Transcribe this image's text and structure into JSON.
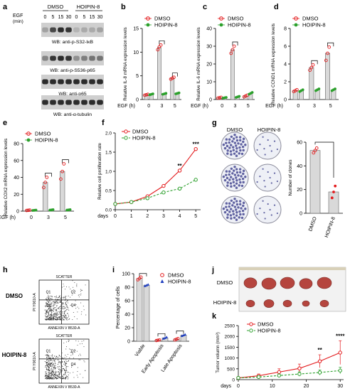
{
  "colors": {
    "dmso": "#e31a1c",
    "hoipin": "#2ca02c",
    "hoipin_blue": "#1f3fbf",
    "bar": "#d9d9d9",
    "bar_edge": "#666666",
    "blot_band": "#1a1a1a",
    "blot_bg": "#cfcfcf",
    "flow_dot": "#333333",
    "tumor": "#b5453e"
  },
  "panels": {
    "a": {
      "letter": "a",
      "groups": [
        "DMSO",
        "HOIPIN-8"
      ],
      "egf_label": "EGF",
      "egf_unit": "(min)",
      "times": [
        "0",
        "5",
        "15",
        "30",
        "0",
        "5",
        "15",
        "30"
      ],
      "blots": [
        {
          "label": "WB: anti-p-S32-IκB",
          "intensity": [
            0.25,
            0.75,
            0.9,
            0.85,
            0.15,
            0.2,
            0.2,
            0.25
          ]
        },
        {
          "label": "WB: anti-p-S536-p65",
          "intensity": [
            0.4,
            0.85,
            0.9,
            0.85,
            0.35,
            0.45,
            0.5,
            0.5
          ]
        },
        {
          "label": "WB: anti-p65",
          "intensity": [
            0.9,
            0.9,
            0.9,
            0.9,
            0.9,
            0.9,
            0.9,
            0.9
          ]
        },
        {
          "label": "WB: anti-α-tubulin",
          "intensity": [
            0.9,
            0.9,
            0.9,
            0.9,
            0.9,
            0.9,
            0.9,
            0.9
          ]
        }
      ]
    },
    "g": {
      "letter": "g",
      "groups": [
        "DMSO",
        "HOIPIN-8"
      ]
    },
    "h": {
      "letter": "h",
      "rows": [
        "DMSO",
        "HOIPIN-8"
      ],
      "plot_title": "SCATTER",
      "xlabel": "ANNEXIN V B530-A",
      "ylabel": "PI Y0610-A",
      "quadrants": [
        "Q1",
        "Q2",
        "Q3",
        "Q4"
      ]
    },
    "j": {
      "letter": "j",
      "rows": [
        "DMSO",
        "HOIPIN-8"
      ]
    }
  },
  "chart_data": [
    {
      "panel": "b",
      "type": "bar",
      "letter": "b",
      "ylabel": "Relative IL-8 mRNA expression levels",
      "xlabel": "EGF (h)",
      "categories": [
        "0",
        "3",
        "5"
      ],
      "ylim": [
        0,
        15
      ],
      "yticks": [
        0,
        5,
        10,
        15
      ],
      "series": [
        {
          "name": "DMSO",
          "values": [
            1.0,
            11.0,
            4.5
          ],
          "points": [
            [
              0.9,
              1.0,
              1.1
            ],
            [
              10.5,
              11.1,
              11.5
            ],
            [
              4.3,
              4.5,
              4.7
            ]
          ]
        },
        {
          "name": "HOIPIN-8",
          "values": [
            1.1,
            1.2,
            1.3
          ],
          "points": [
            [
              1.0,
              1.1,
              1.2
            ],
            [
              1.1,
              1.2,
              1.3
            ],
            [
              1.2,
              1.3,
              1.4
            ]
          ]
        }
      ],
      "sig": [
        1,
        2
      ]
    },
    {
      "panel": "c",
      "type": "bar",
      "letter": "c",
      "ylabel": "Relative IL-6 mRNA expression levels",
      "xlabel": "EGF (h)",
      "categories": [
        "0",
        "3",
        "5"
      ],
      "ylim": [
        0,
        40
      ],
      "yticks": [
        0,
        10,
        20,
        30,
        40
      ],
      "series": [
        {
          "name": "DMSO",
          "values": [
            1.0,
            28.0,
            2.0
          ],
          "points": [
            [
              0.8,
              1.0,
              1.2
            ],
            [
              26,
              28,
              30
            ],
            [
              1.5,
              2.0,
              2.4
            ]
          ]
        },
        {
          "name": "HOIPIN-8",
          "values": [
            1.0,
            1.5,
            3.5
          ],
          "points": [
            [
              0.8,
              1.0,
              1.2
            ],
            [
              1.2,
              1.5,
              1.8
            ],
            [
              3.0,
              3.5,
              4.0
            ]
          ]
        }
      ],
      "sig": [
        1
      ]
    },
    {
      "panel": "d",
      "type": "bar",
      "letter": "d",
      "ylabel": "Relative CCND1 mRNA expression levels",
      "xlabel": "EGF (h)",
      "categories": [
        "0",
        "3",
        "5"
      ],
      "ylim": [
        0,
        8
      ],
      "yticks": [
        0,
        2,
        4,
        6,
        8
      ],
      "series": [
        {
          "name": "DMSO",
          "values": [
            1.0,
            3.6,
            5.2
          ],
          "points": [
            [
              0.9,
              1.0,
              1.1
            ],
            [
              3.3,
              3.6,
              3.9
            ],
            [
              4.4,
              5.2,
              5.9
            ]
          ]
        },
        {
          "name": "HOIPIN-8",
          "values": [
            1.0,
            1.1,
            1.1
          ],
          "points": [
            [
              0.9,
              1.0,
              1.1
            ],
            [
              1.0,
              1.1,
              1.2
            ],
            [
              1.0,
              1.1,
              1.2
            ]
          ]
        }
      ],
      "sig": [
        1,
        2
      ]
    },
    {
      "panel": "e",
      "type": "bar",
      "letter": "e",
      "ylabel": "Relative COX2 mRNA expression levels",
      "xlabel": "EGF (h)",
      "categories": [
        "0",
        "3",
        "5"
      ],
      "ylim": [
        0,
        80
      ],
      "yticks": [
        0,
        20,
        40,
        60,
        80
      ],
      "series": [
        {
          "name": "DMSO",
          "values": [
            1.0,
            34.0,
            47.0
          ],
          "points": [
            [
              0.8,
              1.0,
              1.2
            ],
            [
              28,
              34,
              40
            ],
            [
              38,
              47,
              56
            ]
          ]
        },
        {
          "name": "HOIPIN-8",
          "values": [
            1.0,
            1.5,
            1.5
          ],
          "points": [
            [
              0.8,
              1.0,
              1.2
            ],
            [
              1.2,
              1.5,
              1.8
            ],
            [
              1.2,
              1.5,
              1.8
            ]
          ]
        }
      ],
      "sig": [
        1,
        2
      ]
    },
    {
      "panel": "f",
      "type": "line",
      "letter": "f",
      "ylabel": "Relative cell proliferation rate",
      "xlabel": "days",
      "x": [
        0,
        1,
        2,
        3,
        4,
        5
      ],
      "ylim": [
        0,
        2.0
      ],
      "yticks": [
        0.0,
        0.5,
        1.0,
        1.5,
        2.0
      ],
      "series": [
        {
          "name": "DMSO",
          "values": [
            0.15,
            0.2,
            0.35,
            0.62,
            1.02,
            1.58
          ]
        },
        {
          "name": "HOIPIN-8",
          "values": [
            0.15,
            0.2,
            0.3,
            0.45,
            0.55,
            0.78
          ]
        }
      ],
      "annotations": [
        {
          "x": 4,
          "text": "**"
        },
        {
          "x": 5,
          "text": "***"
        }
      ]
    },
    {
      "panel": "g",
      "type": "bar",
      "letter": "",
      "ylabel": "Number of clones",
      "categories": [
        "DMSO",
        "HOIPIN-8"
      ],
      "ylim": [
        0,
        60
      ],
      "yticks": [
        0,
        20,
        40,
        60
      ],
      "values": [
        53,
        18
      ],
      "points": [
        [
          51,
          53,
          55
        ],
        [
          13,
          18,
          23
        ]
      ]
    },
    {
      "panel": "i",
      "type": "bar",
      "letter": "i",
      "ylabel": "Percentage of cells",
      "categories": [
        "Viable",
        "Early Apoptosis",
        "Late Apoptosis"
      ],
      "ylim": [
        0,
        100
      ],
      "yticks": [
        0,
        20,
        40,
        60,
        80,
        100
      ],
      "series": [
        {
          "name": "DMSO",
          "values": [
            93,
            1.5,
            3
          ],
          "points": [
            [
              91,
              93,
              95
            ],
            [
              1,
              1.5,
              2
            ],
            [
              2,
              3,
              4
            ]
          ]
        },
        {
          "name": "HOIPIN-8",
          "values": [
            83,
            5,
            9
          ],
          "points": [
            [
              82,
              83,
              84
            ],
            [
              4,
              5,
              6
            ],
            [
              8,
              9,
              10
            ]
          ]
        }
      ],
      "sig": [
        0,
        1,
        2
      ]
    },
    {
      "panel": "k",
      "type": "line",
      "letter": "k",
      "ylabel": "Tumor volumn (mm³)",
      "xlabel": "days",
      "x": [
        0,
        6,
        12,
        18,
        24,
        30
      ],
      "xticks": [
        0,
        10,
        20,
        30
      ],
      "ylim": [
        0,
        2500
      ],
      "yticks": [
        0,
        500,
        1000,
        1500,
        2000,
        2500
      ],
      "series": [
        {
          "name": "DMSO",
          "values": [
            80,
            180,
            350,
            520,
            850,
            1250
          ],
          "err": [
            40,
            80,
            150,
            200,
            300,
            550
          ]
        },
        {
          "name": "HOIPIN-8",
          "values": [
            80,
            120,
            190,
            260,
            330,
            420
          ],
          "err": [
            30,
            50,
            70,
            100,
            120,
            150
          ]
        }
      ],
      "annotations": [
        {
          "x": 24,
          "text": "**"
        },
        {
          "x": 30,
          "text": "****"
        }
      ]
    }
  ]
}
